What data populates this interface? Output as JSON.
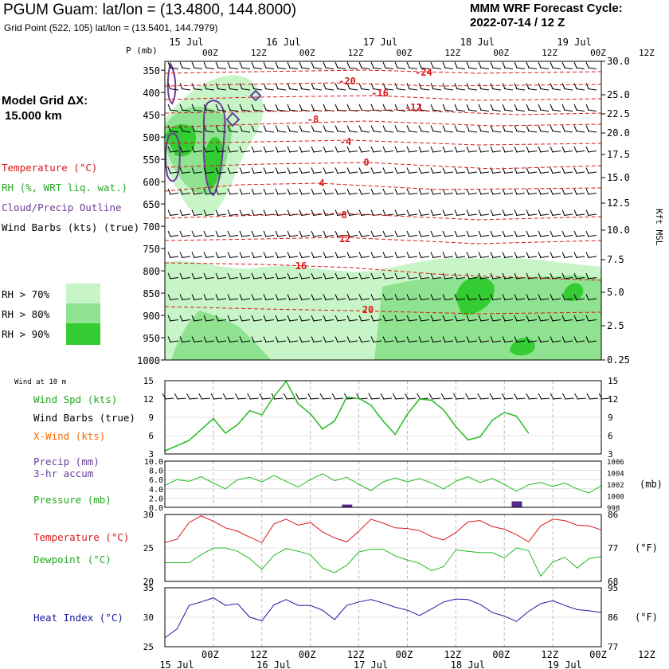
{
  "header": {
    "title": "PGUM Guam:  lat/lon = (13.4800, 144.8000)",
    "grid_point": "Grid Point (522, 105) lat/lon = (13.5401, 144.7979)",
    "cycle_label": "MMM WRF Forecast Cycle:",
    "cycle_value": "2022-07-14 / 12  Z"
  },
  "legend": {
    "model_grid_label": "Model Grid ΔX:",
    "model_grid_value": "15.000 km",
    "temperature": "Temperature (°C)",
    "rh": "RH (%, WRT liq. wat.)",
    "cloud": "Cloud/Precip Outline",
    "wind_barbs": "Wind Barbs (kts) (true)",
    "rh70": "RH > 70%",
    "rh80": "RH > 80%",
    "rh90": "RH > 90%",
    "rh70_color": "#c8f5c8",
    "rh80_color": "#8fe28f",
    "rh90_color": "#33cc33"
  },
  "colors": {
    "temperature": "#d81818",
    "rh": "#22bb22",
    "cloud": "#6a3d9a",
    "xwind": "#ff6600",
    "precip": "#5a2a8a",
    "pressure": "#22bb22",
    "heat_index": "#1a1aa0",
    "black": "#000000"
  },
  "time_axis": {
    "p_label": "P (mb)",
    "top_date_labels": [
      "15 Jul",
      "16 Jul",
      "17 Jul",
      "18 Jul",
      "19 Jul"
    ],
    "hour_labels": [
      "00Z",
      "12Z",
      "00Z",
      "12Z",
      "00Z",
      "12Z",
      "00Z",
      "12Z",
      "00Z",
      "12Z"
    ],
    "bottom_hour_labels": [
      "00Z",
      "12Z",
      "00Z",
      "12Z",
      "00Z",
      "12Z",
      "00Z",
      "12Z",
      "00Z",
      "12Z"
    ],
    "bottom_date_labels": [
      "15 Jul",
      "16 Jul",
      "17 Jul",
      "18 Jul",
      "19 Jul"
    ]
  },
  "chart_data": [
    {
      "type": "contour",
      "name": "vertical_profile",
      "y_left_label": "P (mb)",
      "pressure_levels": [
        "350",
        "400",
        "450",
        "500",
        "550",
        "600",
        "650",
        "700",
        "750",
        "800",
        "850",
        "900",
        "950",
        "1000"
      ],
      "height_levels": [
        "30.0",
        "25.0",
        "22.5",
        "20.0",
        "17.5",
        "15.0",
        "12.5",
        "10.0",
        "7.5",
        "5.0",
        "2.5",
        "0.25"
      ],
      "y_right_label": "Kft MSL",
      "temperature_contour_labels": [
        "-24",
        "-20",
        "-16",
        "-12",
        "-8",
        "-4",
        "0",
        "4",
        "8",
        "12",
        "16",
        "20"
      ]
    },
    {
      "type": "line",
      "name": "wind_10m",
      "title": "Wind at 10 m",
      "series_labels": [
        "Wind Spd (kts)",
        "Wind Barbs (true)",
        "X-Wind (kts)"
      ],
      "yticks": [
        "15",
        "12",
        "9",
        "6",
        "3"
      ],
      "ylim": [
        3,
        15
      ],
      "x_hours": [
        0,
        6,
        12,
        15,
        18,
        21,
        24,
        27,
        30,
        33,
        36,
        39,
        42,
        45,
        48,
        51,
        54,
        57,
        60,
        63,
        66,
        69,
        72,
        75,
        78,
        81,
        84,
        87,
        90,
        93,
        96,
        99,
        102,
        105,
        108
      ],
      "wind_speed": [
        3.5,
        5.2,
        8.8,
        6.4,
        7.8,
        10.1,
        9.4,
        12.4,
        14.9,
        11.2,
        9.6,
        7.1,
        8.4,
        12.3,
        12.1,
        11.0,
        8.4,
        6.2,
        9.5,
        12.0,
        11.8,
        10.2,
        7.5,
        5.3,
        5.8,
        8.5,
        9.8,
        9.2,
        6.4
      ],
      "speed_hours": [
        0,
        6,
        12,
        15,
        18,
        21,
        24,
        27,
        30,
        33,
        36,
        39,
        42,
        45,
        48,
        51,
        54,
        57,
        60,
        63,
        66,
        69,
        72,
        75,
        78,
        81,
        84,
        87,
        90
      ]
    },
    {
      "type": "bar+line",
      "name": "precip_pressure",
      "precip_label": "Precip (mm)",
      "accum_label": "3-hr accum",
      "pressure_label": "Pressure (mb)",
      "precip_ticks": [
        "10.0",
        "8.0",
        "6.0",
        "4.0",
        "2.0",
        "0.0"
      ],
      "pressure_ticks": [
        "1006",
        "1004",
        "1002",
        "1000",
        "998"
      ],
      "pressure_unit": "(mb)",
      "precip_ylim": [
        0,
        10
      ],
      "pressure_ylim": [
        998,
        1006
      ],
      "precip_hours": [
        45,
        87
      ],
      "precip_values": [
        0.6,
        1.3
      ],
      "pressure_hours": [
        0,
        3,
        6,
        9,
        12,
        15,
        18,
        21,
        24,
        27,
        30,
        33,
        36,
        39,
        42,
        45,
        48,
        51,
        54,
        57,
        60,
        63,
        66,
        69,
        72,
        75,
        78,
        81,
        84,
        87,
        90,
        93,
        96,
        99,
        102,
        105,
        108
      ],
      "pressure": [
        1001.8,
        1002.8,
        1002.5,
        1003.3,
        1002.2,
        1001.2,
        1002.8,
        1003.2,
        1002.4,
        1003.5,
        1002.5,
        1001.5,
        1002.8,
        1003.8,
        1002.6,
        1003.2,
        1002.0,
        1000.9,
        1002.4,
        1003.1,
        1002.4,
        1003.0,
        1002.2,
        1001.2,
        1002.5,
        1003.3,
        1002.3,
        1003.0,
        1002.0,
        1000.8,
        1001.9,
        1002.3,
        1001.6,
        1002.2,
        1001.2,
        1000.5,
        1001.8
      ]
    },
    {
      "type": "line",
      "name": "temp_dewpoint",
      "temp_label": "Temperature (°C)",
      "dew_label": "Dewpoint (°C)",
      "c_ticks": [
        "30",
        "25",
        "20"
      ],
      "f_ticks": [
        "86",
        "77",
        "68"
      ],
      "f_unit": "(°F)",
      "ylim": [
        20,
        30
      ],
      "hours": [
        0,
        3,
        6,
        9,
        12,
        15,
        18,
        21,
        24,
        27,
        30,
        33,
        36,
        39,
        42,
        45,
        48,
        51,
        54,
        57,
        60,
        63,
        66,
        69,
        72,
        75,
        78,
        81,
        84,
        87,
        90,
        93,
        96,
        99,
        102,
        105,
        108
      ],
      "temperature": [
        25.8,
        26.3,
        28.8,
        29.8,
        29.0,
        28.0,
        27.5,
        26.6,
        25.8,
        28.6,
        29.3,
        28.4,
        28.8,
        27.4,
        26.5,
        25.9,
        27.5,
        29.3,
        28.7,
        28.0,
        27.9,
        27.6,
        26.7,
        26.2,
        27.3,
        28.9,
        29.1,
        28.2,
        27.8,
        27.0,
        25.9,
        28.3,
        29.3,
        29.1,
        28.4,
        28.3,
        27.7
      ],
      "dewpoint": [
        22.8,
        22.8,
        22.8,
        24.0,
        25.0,
        25.0,
        24.5,
        23.4,
        21.8,
        23.9,
        24.9,
        24.5,
        24.0,
        22.0,
        21.3,
        22.4,
        24.4,
        24.8,
        24.8,
        23.8,
        23.2,
        22.7,
        21.6,
        22.2,
        24.7,
        24.5,
        24.3,
        24.3,
        23.5,
        25.0,
        24.6,
        20.8,
        22.9,
        23.6,
        22.0,
        23.4,
        23.7
      ]
    },
    {
      "type": "line",
      "name": "heat_index",
      "label": "Heat Index (°C)",
      "c_ticks": [
        "35",
        "30",
        "25"
      ],
      "f_ticks": [
        "95",
        "86",
        "77"
      ],
      "f_unit": "(°F)",
      "ylim": [
        25,
        35
      ],
      "hours": [
        0,
        3,
        6,
        9,
        12,
        15,
        18,
        21,
        24,
        27,
        30,
        33,
        36,
        39,
        42,
        45,
        48,
        51,
        54,
        57,
        60,
        63,
        66,
        69,
        72,
        75,
        78,
        81,
        84,
        87,
        90,
        93,
        96,
        99,
        102,
        105,
        108
      ],
      "heat_index": [
        26.5,
        28.0,
        32.0,
        32.6,
        33.3,
        32.0,
        32.3,
        30.0,
        29.4,
        32.1,
        33.0,
        32.0,
        32.0,
        31.2,
        29.6,
        32.0,
        32.6,
        33.0,
        32.4,
        31.7,
        31.2,
        30.3,
        31.4,
        32.6,
        33.1,
        33.0,
        32.2,
        30.8,
        30.2,
        29.3,
        31.0,
        32.3,
        32.8,
        32.0,
        31.3,
        31.1,
        30.8
      ]
    }
  ]
}
